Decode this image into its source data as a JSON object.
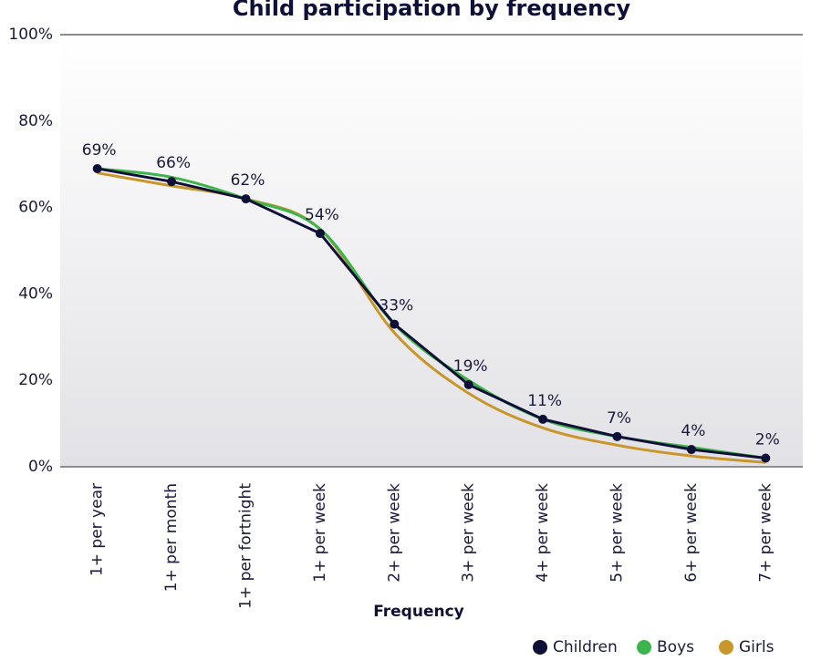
{
  "chart_data": {
    "type": "line",
    "title": "Child participation by frequency",
    "x_label": "Frequency",
    "categories": [
      "1+ per year",
      "1+ per month",
      "1+ per fortnight",
      "1+ per week",
      "2+ per week",
      "3+ per week",
      "4+ per week",
      "5+ per week",
      "6+ per week",
      "7+ per week"
    ],
    "series": [
      {
        "name": "Children",
        "color": "#0f1038",
        "values": [
          69,
          66,
          62,
          54,
          33,
          19,
          11,
          7,
          4,
          2
        ],
        "value_labels": [
          "69%",
          "66%",
          "62%",
          "54%",
          "33%",
          "19%",
          "11%",
          "7%",
          "4%",
          "2%"
        ]
      },
      {
        "name": "Boys",
        "color": "#3cb44b",
        "values": [
          69,
          67,
          62,
          55,
          33,
          20,
          11,
          7,
          4.5,
          2
        ]
      },
      {
        "name": "Girls",
        "color": "#c9962b",
        "values": [
          68,
          65,
          62,
          55,
          31,
          17,
          9,
          5,
          2.5,
          1
        ]
      }
    ],
    "ylim": [
      0,
      100
    ],
    "yticks": [
      {
        "value": 0,
        "label": "0%"
      },
      {
        "value": 20,
        "label": "20%"
      },
      {
        "value": 40,
        "label": "40%"
      },
      {
        "value": 60,
        "label": "60%"
      },
      {
        "value": 80,
        "label": "80%"
      },
      {
        "value": 100,
        "label": "100%"
      }
    ],
    "legend": "bottom-right"
  }
}
